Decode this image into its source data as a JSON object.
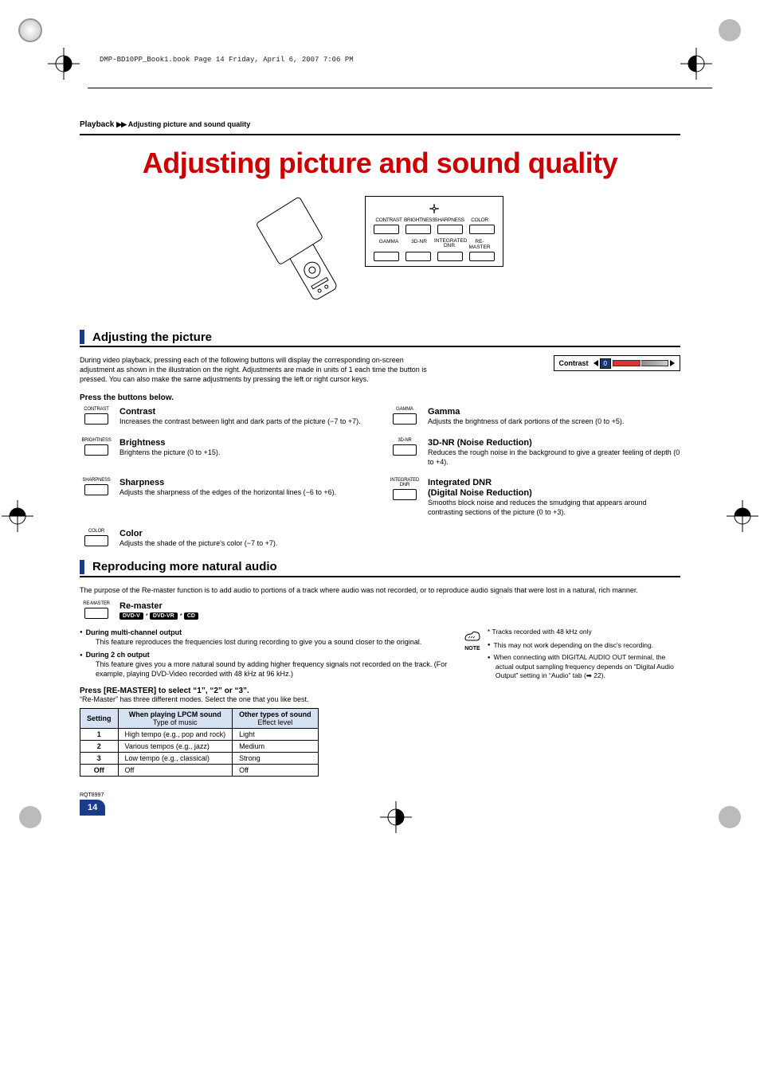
{
  "header_line": "DMP-BD10PP_Book1.book  Page 14  Friday, April 6, 2007  7:06 PM",
  "breadcrumb": {
    "section": "Playback",
    "arrows": "▶▶",
    "sub": "Adjusting picture and sound quality"
  },
  "main_title": "Adjusting picture and sound quality",
  "diagram": {
    "top_labels": [
      "CONTRAST",
      "BRIGHTNESS",
      "SHARPNESS",
      "COLOR"
    ],
    "bot_labels": [
      "GAMMA",
      "3D-NR",
      "INTEGRATED\nDNR",
      "RE-MASTER"
    ]
  },
  "section1": {
    "title": "Adjusting the picture",
    "intro": "During video playback, pressing each of the following buttons will display the corresponding on-screen adjustment as shown in the illustration on the right. Adjustments are made in units of 1 each time the button is pressed. You can also make the same adjustments by pressing the left or right cursor keys.",
    "osd_label": "Contrast",
    "osd_value": "0",
    "press_heading": "Press the buttons below.",
    "items": [
      {
        "btn": "CONTRAST",
        "name": "Contrast",
        "desc": "Increases the contrast between light and dark parts of the picture (−7 to +7)."
      },
      {
        "btn": "GAMMA",
        "name": "Gamma",
        "desc": "Adjusts the brightness of dark portions of the screen (0 to +5)."
      },
      {
        "btn": "BRIGHTNESS",
        "name": "Brightness",
        "desc": "Brightens the picture (0 to +15)."
      },
      {
        "btn": "3D-NR",
        "name": "3D-NR (Noise Reduction)",
        "desc": "Reduces the rough noise in the background to give a greater feeling of depth (0 to +4)."
      },
      {
        "btn": "SHARPNESS",
        "name": "Sharpness",
        "desc": "Adjusts the sharpness of the edges of the horizontal lines (−6 to +6)."
      },
      {
        "btn": "INTEGRATED\nDNR",
        "name": "Integrated DNR",
        "subname": "(Digital Noise Reduction)",
        "desc": "Smooths block noise and reduces the smudging that appears around contrasting sections of the picture (0 to +3)."
      },
      {
        "btn": "COLOR",
        "name": "Color",
        "desc": "Adjusts the shade of the picture's color (−7 to +7)."
      }
    ]
  },
  "section2": {
    "title": "Reproducing more natural audio",
    "intro": "The purpose of the Re-master function is to add audio to portions of a track where audio was not recorded, or to reproduce audio signals that were lost in a natural, rich manner.",
    "remaster": {
      "btn": "RE-MASTER",
      "name": "Re-master",
      "tags": [
        "DVD-V",
        "DVD-VR",
        "CD"
      ]
    },
    "bullets": [
      {
        "head": "During multi-channel output",
        "body": "This feature reproduces the frequencies lost during recording to give you a sound closer to the original."
      },
      {
        "head": "During 2 ch output",
        "body": "This feature gives you a more natural sound by adding higher frequency signals not recorded on the track. (For example, playing DVD-Video recorded with 48 kHz at 96 kHz.)"
      }
    ],
    "press": "Press [RE-MASTER] to select “1”, “2” or “3”.",
    "press_sub": "“Re-Master” has three different modes. Select the one that you like best.",
    "table": {
      "headers": [
        "Setting",
        "When playing LPCM sound",
        "Other types of sound"
      ],
      "sub_headers": [
        "",
        "Type of music",
        "Effect level"
      ],
      "rows": [
        [
          "1",
          "High tempo (e.g., pop and rock)",
          "Light"
        ],
        [
          "2",
          "Various tempos (e.g., jazz)",
          "Medium"
        ],
        [
          "3",
          "Low tempo (e.g., classical)",
          "Strong"
        ],
        [
          "Off",
          "Off",
          "Off"
        ]
      ]
    },
    "note_star": "* Tracks recorded with 48 kHz only",
    "note_bullets": [
      "This may not work depending on the disc's recording.",
      "When connecting with DIGITAL AUDIO OUT terminal, the actual output sampling frequency depends on “Digital Audio Output” setting in “Audio” tab (➡ 22)."
    ],
    "note_label": "NOTE"
  },
  "footer": {
    "code": "RQT8997",
    "page": "14"
  },
  "colors": {
    "title_red": "#c00",
    "accent_blue": "#1a3a8a",
    "table_header_bg": "#d6e2f2"
  }
}
